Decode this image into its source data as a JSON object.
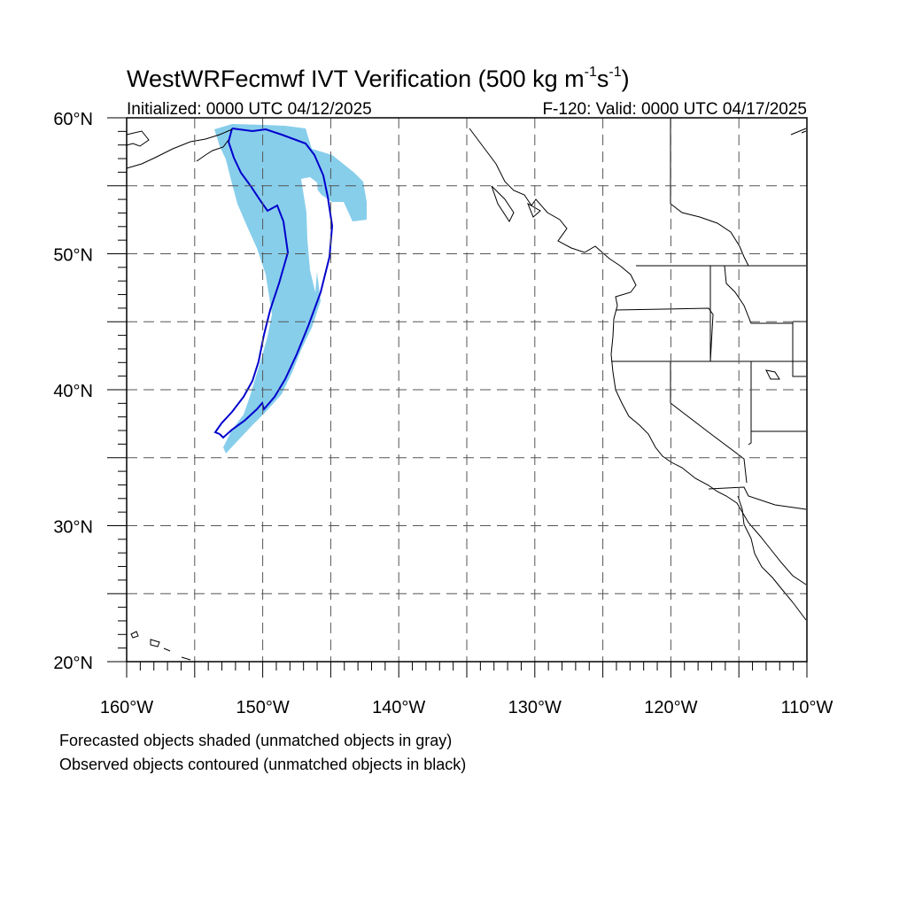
{
  "title": {
    "main": "WestWRFecmwf IVT Verification (500 kg m",
    "sup1": "-1",
    "mid": "s",
    "sup2": "-1",
    "end": ")"
  },
  "initialized": "Initialized: 0000 UTC 04/12/2025",
  "valid": "F-120: Valid: 0000 UTC 04/17/2025",
  "map": {
    "lon_range": [
      -160,
      -110
    ],
    "lat_range": [
      20,
      60
    ],
    "lon_labels": [
      {
        "lon": -160,
        "label": "160°W"
      },
      {
        "lon": -150,
        "label": "150°W"
      },
      {
        "lon": -140,
        "label": "140°W"
      },
      {
        "lon": -130,
        "label": "130°W"
      },
      {
        "lon": -120,
        "label": "120°W"
      },
      {
        "lon": -110,
        "label": "110°W"
      }
    ],
    "lat_labels": [
      {
        "lat": 60,
        "label": "60°N"
      },
      {
        "lat": 50,
        "label": "50°N"
      },
      {
        "lat": 40,
        "label": "40°N"
      },
      {
        "lat": 30,
        "label": "30°N"
      },
      {
        "lat": 20,
        "label": "20°N"
      }
    ],
    "gridline_spacing_deg": 5,
    "grid_style": "dashed",
    "forecast_color": "#87CEEB",
    "observed_color": "#0000CD"
  },
  "notes": [
    "Forecasted objects shaded (unmatched objects in gray)",
    "Observed objects contoured (unmatched objects in black)"
  ]
}
